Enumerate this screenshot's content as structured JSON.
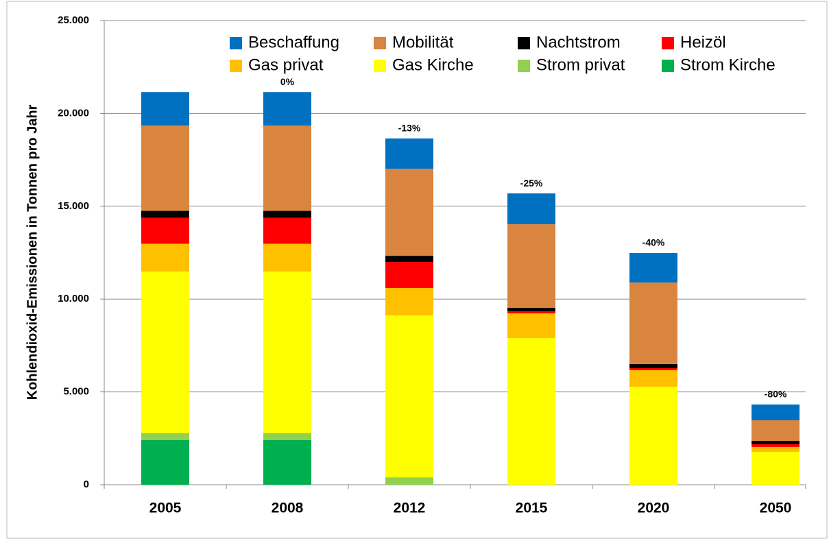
{
  "chart_data": {
    "type": "stacked_bar",
    "y_label": "Kohlendioxid-Emissionen in Tonnen pro Jahr",
    "categories": [
      "2005",
      "2008",
      "2012",
      "2015",
      "2020",
      "2050"
    ],
    "bar_labels": [
      null,
      "0%",
      "-13%",
      "-25%",
      "-40%",
      "-80%"
    ],
    "series": [
      {
        "name": "Beschaffung",
        "color": "#0070c0",
        "values": [
          1800,
          1800,
          1630,
          1660,
          1590,
          850
        ]
      },
      {
        "name": "Mobilität",
        "color": "#d9843f",
        "values": [
          4600,
          4600,
          4690,
          4500,
          4390,
          1110
        ]
      },
      {
        "name": "Nachtstrom",
        "color": "#000000",
        "values": [
          370,
          370,
          330,
          190,
          220,
          180
        ]
      },
      {
        "name": "Heizöl",
        "color": "#ff0000",
        "values": [
          1400,
          1400,
          1400,
          110,
          110,
          150
        ]
      },
      {
        "name": "Gas privat",
        "color": "#ffc000",
        "values": [
          1500,
          1500,
          1480,
          1330,
          890,
          260
        ]
      },
      {
        "name": "Gas Kirche",
        "color": "#ffff00",
        "values": [
          8700,
          8700,
          8720,
          7900,
          5280,
          1770
        ]
      },
      {
        "name": "Strom privat",
        "color": "#92d050",
        "values": [
          380,
          380,
          400,
          0,
          0,
          0
        ]
      },
      {
        "name": "Strom Kirche",
        "color": "#00b050",
        "values": [
          2400,
          2400,
          0,
          0,
          0,
          0
        ]
      }
    ],
    "ylim": [
      0,
      25000
    ],
    "yticks": [
      0,
      {
        "value": 5000,
        "label": "5.000"
      },
      {
        "value": 10000,
        "label": "10.000"
      },
      {
        "value": 15000,
        "label": "15.000"
      },
      {
        "value": 20000,
        "label": "20.000"
      },
      {
        "value": 25000,
        "label": "25.000"
      }
    ],
    "grid": true
  }
}
